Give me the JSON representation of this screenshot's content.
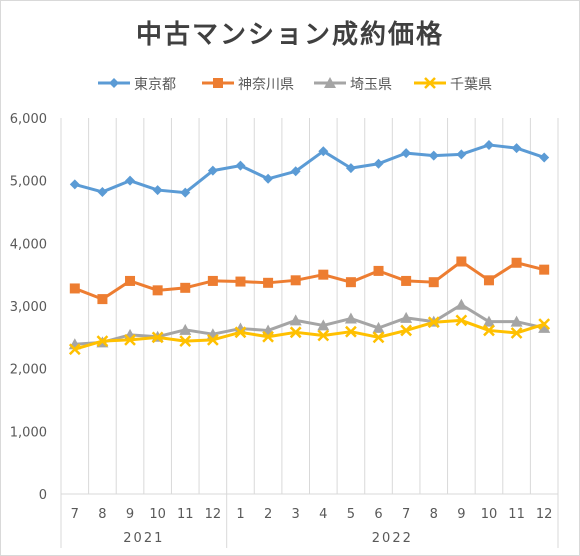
{
  "chart_data": {
    "type": "line",
    "title": "中古マンション成約価格",
    "xlabel": "",
    "ylabel": "",
    "ylim": [
      0,
      6000
    ],
    "yticks": [
      "0",
      "1,000",
      "2,000",
      "3,000",
      "4,000",
      "5,000",
      "6,000"
    ],
    "categories": [
      "7",
      "8",
      "9",
      "10",
      "11",
      "12",
      "1",
      "2",
      "3",
      "4",
      "5",
      "6",
      "7",
      "8",
      "9",
      "10",
      "11",
      "12"
    ],
    "year_groups": [
      {
        "label": "2021",
        "span": [
          0,
          5
        ]
      },
      {
        "label": "2022",
        "span": [
          6,
          17
        ]
      }
    ],
    "grid": true,
    "legend_position": "top",
    "series": [
      {
        "name": "東京都",
        "color": "#5b9bd5",
        "marker": "diamond",
        "values": [
          4940,
          4820,
          5000,
          4850,
          4810,
          5160,
          5240,
          5030,
          5150,
          5470,
          5200,
          5270,
          5440,
          5400,
          5420,
          5570,
          5520,
          5370
        ]
      },
      {
        "name": "神奈川県",
        "color": "#ed7d31",
        "marker": "square",
        "values": [
          3280,
          3110,
          3400,
          3250,
          3290,
          3400,
          3390,
          3370,
          3410,
          3500,
          3380,
          3560,
          3400,
          3380,
          3710,
          3410,
          3690,
          3580
        ]
      },
      {
        "name": "埼玉県",
        "color": "#a5a5a5",
        "marker": "triangle",
        "values": [
          2390,
          2420,
          2540,
          2510,
          2620,
          2550,
          2640,
          2610,
          2770,
          2690,
          2800,
          2650,
          2810,
          2750,
          3020,
          2750,
          2750,
          2650
        ]
      },
      {
        "name": "千葉県",
        "color": "#ffc000",
        "marker": "x",
        "values": [
          2310,
          2440,
          2460,
          2500,
          2440,
          2460,
          2580,
          2510,
          2580,
          2530,
          2590,
          2500,
          2610,
          2740,
          2770,
          2610,
          2570,
          2710
        ]
      }
    ]
  }
}
